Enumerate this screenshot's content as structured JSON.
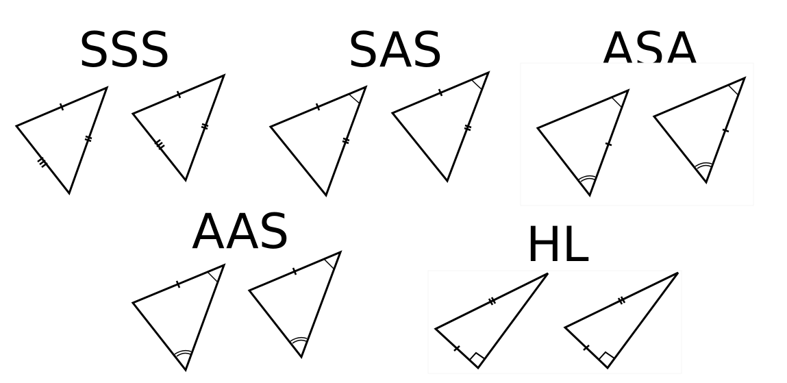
{
  "postulates": [
    {
      "id": "sss",
      "label": "SSS"
    },
    {
      "id": "sas",
      "label": "SAS"
    },
    {
      "id": "asa",
      "label": "ASA"
    },
    {
      "id": "aas",
      "label": "AAS"
    },
    {
      "id": "hl",
      "label": "HL"
    }
  ]
}
